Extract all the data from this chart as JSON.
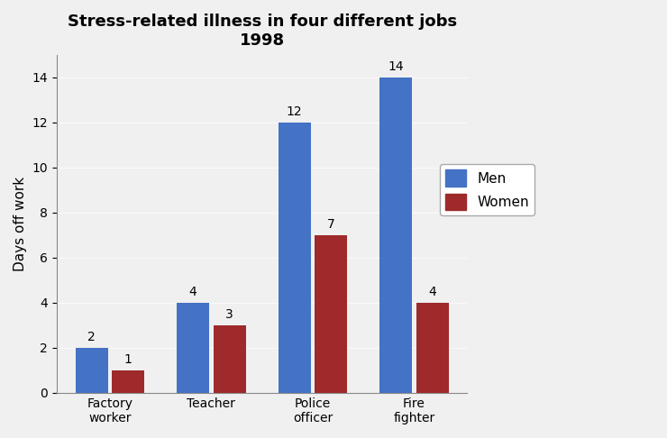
{
  "title_line1": "Stress-related illness in four different jobs",
  "title_line2": "1998",
  "categories": [
    "Factory\nworker",
    "Teacher",
    "Police\nofficer",
    "Fire\nfighter"
  ],
  "men_values": [
    2,
    4,
    12,
    14
  ],
  "women_values": [
    1,
    3,
    7,
    4
  ],
  "men_color": "#4472C4",
  "women_color": "#9E2A2B",
  "ylabel": "Days off work",
  "ylim": [
    0,
    15
  ],
  "yticks": [
    0,
    2,
    4,
    6,
    8,
    10,
    12,
    14
  ],
  "legend_labels": [
    "Men",
    "Women"
  ],
  "bar_width": 0.32,
  "title_fontsize": 13,
  "label_fontsize": 11,
  "tick_fontsize": 10,
  "value_fontsize": 10,
  "background_color": "#f0f0f0",
  "plot_bg_color": "#f0f0f0",
  "floor_color": "#d8d8d8",
  "bar_gap": 0.04
}
